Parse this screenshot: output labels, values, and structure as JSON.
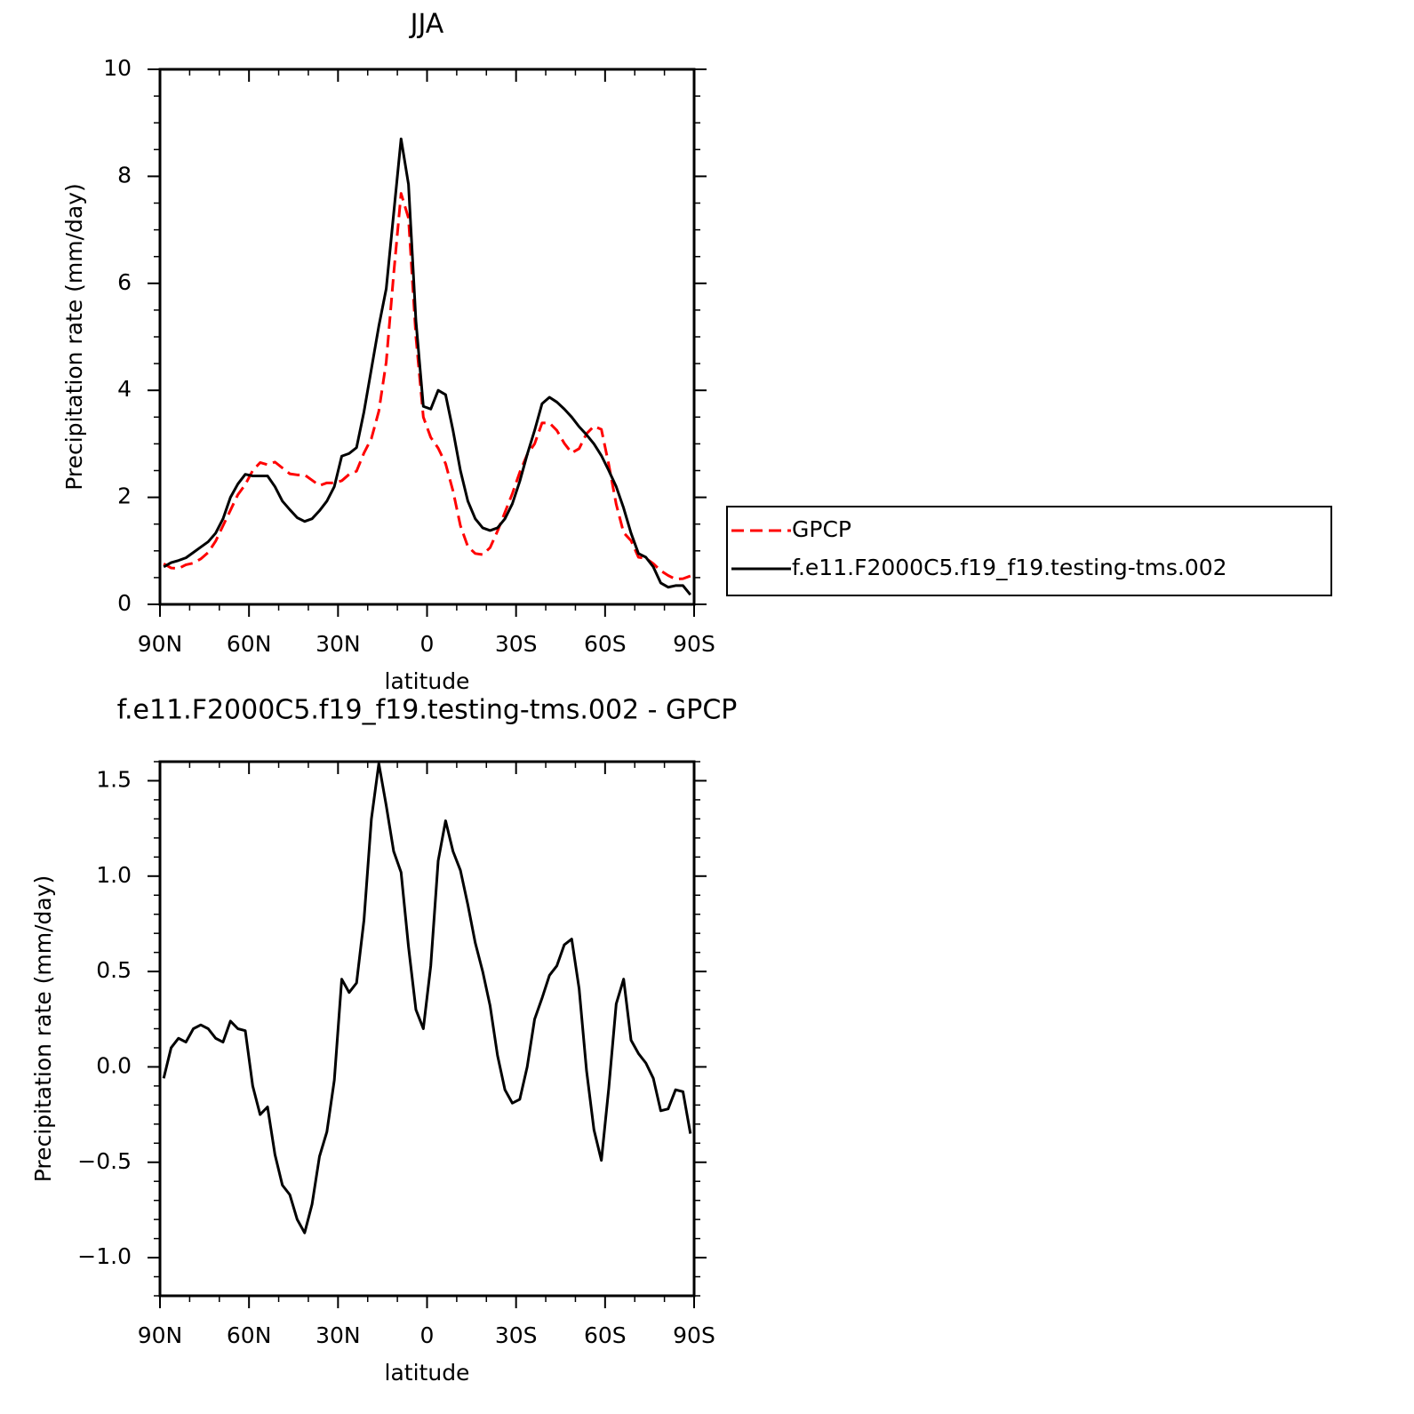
{
  "chart_data": [
    {
      "type": "line",
      "title": "JJA",
      "x_label": "latitude",
      "y_label": "Precipitation rate (mm/day)",
      "x": [
        88.75,
        86.25,
        83.75,
        81.25,
        78.75,
        76.25,
        73.75,
        71.25,
        68.75,
        66.25,
        63.75,
        61.25,
        58.75,
        56.25,
        53.75,
        51.25,
        48.75,
        46.25,
        43.75,
        41.25,
        38.75,
        36.25,
        33.75,
        31.25,
        28.75,
        26.25,
        23.75,
        21.25,
        18.75,
        16.25,
        13.75,
        11.25,
        8.75,
        6.25,
        3.75,
        1.25,
        -1.25,
        -3.75,
        -6.25,
        -8.75,
        -11.25,
        -13.75,
        -16.25,
        -18.75,
        -21.25,
        -23.75,
        -26.25,
        -28.75,
        -31.25,
        -33.75,
        -36.25,
        -38.75,
        -41.25,
        -43.75,
        -46.25,
        -48.75,
        -51.25,
        -53.75,
        -56.25,
        -58.75,
        -61.25,
        -63.75,
        -66.25,
        -68.75,
        -71.25,
        -73.75,
        -76.25,
        -78.75,
        -81.25,
        -83.75,
        -86.25,
        -88.75
      ],
      "xlim": [
        90,
        -90
      ],
      "xticks": [
        {
          "value": 90,
          "label": "90N"
        },
        {
          "value": 60,
          "label": "60N"
        },
        {
          "value": 30,
          "label": "30N"
        },
        0,
        {
          "value": -30,
          "label": "30S"
        },
        {
          "value": -60,
          "label": "60S"
        },
        {
          "value": -90,
          "label": "90S"
        }
      ],
      "ylim": [
        0,
        10
      ],
      "yticks": [
        0,
        2,
        4,
        6,
        8,
        10
      ],
      "legend": "outside-right",
      "series": [
        {
          "name": "GPCP",
          "color": "#ff0000",
          "dash": "dashed",
          "values": [
            0.76,
            0.68,
            0.67,
            0.74,
            0.77,
            0.85,
            0.97,
            1.18,
            1.47,
            1.76,
            2.05,
            2.24,
            2.5,
            2.65,
            2.61,
            2.66,
            2.55,
            2.44,
            2.42,
            2.42,
            2.32,
            2.22,
            2.27,
            2.27,
            2.31,
            2.43,
            2.49,
            2.83,
            3.1,
            3.61,
            4.53,
            6.17,
            7.68,
            7.22,
            5.0,
            3.5,
            3.12,
            2.92,
            2.63,
            2.12,
            1.47,
            1.08,
            0.95,
            0.93,
            1.06,
            1.37,
            1.72,
            2.07,
            2.47,
            2.8,
            3.0,
            3.39,
            3.39,
            3.25,
            3.01,
            2.83,
            2.91,
            3.19,
            3.33,
            3.27,
            2.61,
            1.87,
            1.34,
            1.19,
            0.88,
            0.86,
            0.76,
            0.63,
            0.54,
            0.47,
            0.48,
            0.53
          ]
        },
        {
          "name": "f.e11.F2000C5.f19_f19.testing-tms.002",
          "color": "#000000",
          "dash": "solid",
          "values": [
            0.7,
            0.78,
            0.82,
            0.87,
            0.97,
            1.07,
            1.17,
            1.33,
            1.6,
            2.0,
            2.25,
            2.43,
            2.4,
            2.4,
            2.4,
            2.2,
            1.93,
            1.77,
            1.62,
            1.55,
            1.6,
            1.75,
            1.93,
            2.2,
            2.77,
            2.82,
            2.93,
            3.6,
            4.4,
            5.2,
            5.9,
            7.3,
            8.7,
            7.85,
            5.3,
            3.7,
            3.65,
            4.0,
            3.92,
            3.25,
            2.5,
            1.93,
            1.6,
            1.43,
            1.38,
            1.43,
            1.6,
            1.88,
            2.3,
            2.8,
            3.25,
            3.75,
            3.87,
            3.78,
            3.65,
            3.5,
            3.32,
            3.17,
            3.0,
            2.78,
            2.5,
            2.2,
            1.8,
            1.33,
            0.95,
            0.88,
            0.7,
            0.4,
            0.32,
            0.35,
            0.35,
            0.18
          ]
        }
      ]
    },
    {
      "type": "line",
      "title": "f.e11.F2000C5.f19_f19.testing-tms.002 - GPCP",
      "x_label": "latitude",
      "y_label": "Precipitation rate (mm/day)",
      "x": [
        88.75,
        86.25,
        83.75,
        81.25,
        78.75,
        76.25,
        73.75,
        71.25,
        68.75,
        66.25,
        63.75,
        61.25,
        58.75,
        56.25,
        53.75,
        51.25,
        48.75,
        46.25,
        43.75,
        41.25,
        38.75,
        36.25,
        33.75,
        31.25,
        28.75,
        26.25,
        23.75,
        21.25,
        18.75,
        16.25,
        13.75,
        11.25,
        8.75,
        6.25,
        3.75,
        1.25,
        -1.25,
        -3.75,
        -6.25,
        -8.75,
        -11.25,
        -13.75,
        -16.25,
        -18.75,
        -21.25,
        -23.75,
        -26.25,
        -28.75,
        -31.25,
        -33.75,
        -36.25,
        -38.75,
        -41.25,
        -43.75,
        -46.25,
        -48.75,
        -51.25,
        -53.75,
        -56.25,
        -58.75,
        -61.25,
        -63.75,
        -66.25,
        -68.75,
        -71.25,
        -73.75,
        -76.25,
        -78.75,
        -81.25,
        -83.75,
        -86.25,
        -88.75
      ],
      "xlim": [
        90,
        -90
      ],
      "xticks": [
        {
          "value": 90,
          "label": "90N"
        },
        {
          "value": 60,
          "label": "60N"
        },
        {
          "value": 30,
          "label": "30N"
        },
        0,
        {
          "value": -30,
          "label": "30S"
        },
        {
          "value": -60,
          "label": "60S"
        },
        {
          "value": -90,
          "label": "90S"
        }
      ],
      "ylim": [
        -1.2,
        1.6
      ],
      "yticks": [
        {
          "value": 1.5,
          "label": "1.5"
        },
        {
          "value": 1,
          "label": "1.0"
        },
        {
          "value": 0.5,
          "label": "0.5"
        },
        {
          "value": 0,
          "label": "0.0"
        },
        {
          "value": -0.5,
          "label": "−0.5"
        },
        {
          "value": -1,
          "label": "−1.0"
        }
      ],
      "series": [
        {
          "color": "#000000",
          "dash": "solid",
          "values": [
            -0.06,
            0.1,
            0.15,
            0.13,
            0.2,
            0.22,
            0.2,
            0.15,
            0.13,
            0.24,
            0.2,
            0.19,
            -0.1,
            -0.25,
            -0.21,
            -0.46,
            -0.62,
            -0.67,
            -0.8,
            -0.87,
            -0.72,
            -0.47,
            -0.34,
            -0.07,
            0.46,
            0.39,
            0.44,
            0.77,
            1.3,
            1.59,
            1.37,
            1.13,
            1.02,
            0.63,
            0.3,
            0.2,
            0.53,
            1.08,
            1.29,
            1.13,
            1.03,
            0.85,
            0.65,
            0.5,
            0.32,
            0.06,
            -0.12,
            -0.19,
            -0.17,
            0.0,
            0.25,
            0.36,
            0.48,
            0.53,
            0.64,
            0.67,
            0.41,
            -0.02,
            -0.33,
            -0.49,
            -0.11,
            0.33,
            0.46,
            0.14,
            0.07,
            0.02,
            -0.06,
            -0.23,
            -0.22,
            -0.12,
            -0.13,
            -0.35
          ]
        }
      ]
    }
  ]
}
